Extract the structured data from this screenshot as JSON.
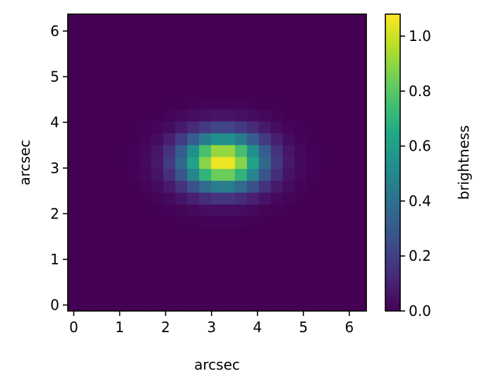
{
  "chart_data": {
    "type": "heatmap",
    "title": "",
    "xlabel": "arcsec",
    "ylabel": "arcsec",
    "colorbar_label": "brightness",
    "colormap": "viridis",
    "xlim": [
      -0.13,
      6.37
    ],
    "ylim": [
      -0.13,
      6.37
    ],
    "pixel_scale": 0.26,
    "grid_size": 25,
    "source": {
      "center_x": 3.25,
      "center_y": 3.15,
      "sigma_x": 0.62,
      "sigma_y": 0.42,
      "peak": 1.08
    },
    "color_range": [
      0.0,
      1.08
    ],
    "x_ticks": [
      0,
      1,
      2,
      3,
      4,
      5,
      6
    ],
    "y_ticks": [
      0,
      1,
      2,
      3,
      4,
      5,
      6
    ],
    "x_tick_labels": [
      "0",
      "1",
      "2",
      "3",
      "4",
      "5",
      "6"
    ],
    "y_tick_labels": [
      "0",
      "1",
      "2",
      "3",
      "4",
      "5",
      "6"
    ],
    "colorbar_ticks": [
      0.0,
      0.2,
      0.4,
      0.6,
      0.8,
      1.0
    ],
    "colorbar_tick_labels": [
      "0.0",
      "0.2",
      "0.4",
      "0.6",
      "0.8",
      "1.0"
    ],
    "grid": false
  }
}
